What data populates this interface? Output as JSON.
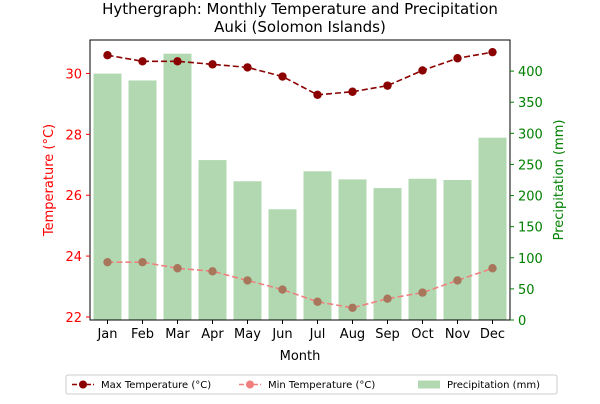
{
  "chart_data": {
    "type": "bar+line",
    "title": "Hythergraph: Monthly Temperature and Precipitation",
    "subtitle": "Auki (Solomon Islands)",
    "xlabel": "Month",
    "ylabel_left": "Temperature (°C)",
    "ylabel_right": "Precipitation (mm)",
    "categories": [
      "Jan",
      "Feb",
      "Mar",
      "Apr",
      "May",
      "Jun",
      "Jul",
      "Aug",
      "Sep",
      "Oct",
      "Nov",
      "Dec"
    ],
    "y_left_lim": [
      21.9,
      31.1
    ],
    "y_left_ticks": [
      22,
      24,
      26,
      28,
      30
    ],
    "y_right_lim": [
      0,
      450
    ],
    "y_right_ticks": [
      0,
      50,
      100,
      150,
      200,
      250,
      300,
      350,
      400
    ],
    "grid": false,
    "legend_position": "bottom",
    "series": [
      {
        "name": "Max Temperature (°C)",
        "kind": "line",
        "axis": "left",
        "color": "#8b0000",
        "values": [
          30.6,
          30.4,
          30.4,
          30.3,
          30.2,
          29.9,
          29.3,
          29.4,
          29.6,
          30.1,
          30.5,
          30.7
        ]
      },
      {
        "name": "Min Temperature (°C)",
        "kind": "line",
        "axis": "left",
        "color": "#f08080",
        "marker_color": "#a8765a",
        "values": [
          23.8,
          23.8,
          23.6,
          23.5,
          23.2,
          22.9,
          22.5,
          22.3,
          22.6,
          22.8,
          23.2,
          23.6
        ]
      },
      {
        "name": "Precipitation (mm)",
        "kind": "bar",
        "axis": "right",
        "color": "#b2d8b2",
        "values": [
          396,
          385,
          428,
          257,
          223,
          178,
          239,
          226,
          212,
          227,
          225,
          293
        ]
      }
    ],
    "colors": {
      "left_axis": "#ff0000",
      "right_axis": "#008000"
    }
  }
}
